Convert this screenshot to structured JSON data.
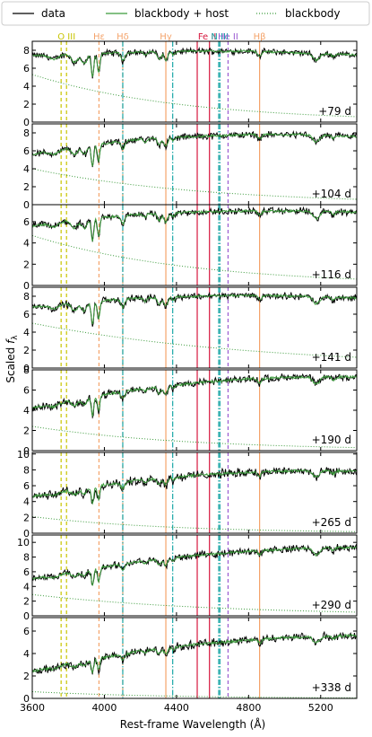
{
  "chart_data": {
    "type": "line",
    "xlabel": "Rest-frame Wavelength (Å)",
    "ylabel": "Scaled f_λ",
    "ylabel_main": "Scaled ",
    "ylabel_symbol": "f",
    "ylabel_sub": "λ",
    "xlim": [
      3600,
      5400
    ],
    "xticks": [
      3600,
      4000,
      4400,
      4800,
      5200
    ],
    "legend": {
      "position": "top, outside",
      "entries": [
        {
          "label": "data",
          "color": "#000000",
          "style": "solid"
        },
        {
          "label": "blackbody + host",
          "color": "#3a9a3a",
          "style": "solid"
        },
        {
          "label": "blackbody",
          "color": "#3a9a3a",
          "style": "dotted"
        }
      ]
    },
    "line_labels": [
      {
        "text": "O III",
        "x": 3790,
        "color": "#c7c400"
      },
      {
        "text": "Hε",
        "x": 3970,
        "color": "#f4a36a"
      },
      {
        "text": "Hδ",
        "x": 4102,
        "color": "#f4a36a"
      },
      {
        "text": "Hγ",
        "x": 4341,
        "color": "#f4a36a"
      },
      {
        "text": "Fe II",
        "x": 4570,
        "color": "#d6173e"
      },
      {
        "text": "N III",
        "x": 4640,
        "color": "#1aa6a6"
      },
      {
        "text": "He II",
        "x": 4686,
        "color": "#9b5bd1"
      },
      {
        "text": "Hβ",
        "x": 4861,
        "color": "#f4a36a"
      }
    ],
    "vlines": [
      {
        "x": 3760,
        "color": "#c7c400",
        "style": "dashed"
      },
      {
        "x": 3790,
        "color": "#c7c400",
        "style": "dashed"
      },
      {
        "x": 3970,
        "color": "#f4a36a",
        "style": "dashed"
      },
      {
        "x": 4102,
        "color": "#f4a36a",
        "style": "dashed"
      },
      {
        "x": 4102,
        "color": "#1aa6a6",
        "style": "dashdot"
      },
      {
        "x": 4341,
        "color": "#f4a36a",
        "style": "solid"
      },
      {
        "x": 4379,
        "color": "#1aa6a6",
        "style": "dashdot"
      },
      {
        "x": 4515,
        "color": "#d6173e",
        "style": "solid"
      },
      {
        "x": 4583,
        "color": "#d6173e",
        "style": "solid"
      },
      {
        "x": 4634,
        "color": "#1aa6a6",
        "style": "dashdot"
      },
      {
        "x": 4641,
        "color": "#1aa6a6",
        "style": "dashdot"
      },
      {
        "x": 4686,
        "color": "#9b5bd1",
        "style": "dashed"
      },
      {
        "x": 4861,
        "color": "#f4a36a",
        "style": "solid"
      }
    ],
    "panels": [
      {
        "label": "+79 d",
        "ylim": [
          0,
          9
        ],
        "yticks": [
          0,
          2,
          4,
          6,
          8
        ],
        "cont": [
          7.4,
          7.6,
          7.8,
          7.9,
          7.9,
          7.7,
          7.5
        ],
        "noise": 0.28,
        "bb": [
          5.3,
          0.6
        ]
      },
      {
        "label": "+104 d",
        "ylim": [
          0,
          9
        ],
        "yticks": [
          0,
          2,
          4,
          6,
          8
        ],
        "cont": [
          5.6,
          6.6,
          7.3,
          7.6,
          7.8,
          7.8,
          7.6
        ],
        "noise": 0.3,
        "bb": [
          4.0,
          0.6
        ]
      },
      {
        "label": "+116 d",
        "ylim": [
          0,
          7.6
        ],
        "yticks": [
          0,
          2,
          4,
          6
        ],
        "cont": [
          5.6,
          6.3,
          6.7,
          6.9,
          7.0,
          7.0,
          6.9
        ],
        "noise": 0.27,
        "bb": [
          4.7,
          0.6
        ]
      },
      {
        "label": "+141 d",
        "ylim": [
          0,
          9
        ],
        "yticks": [
          0,
          2,
          4,
          6,
          8
        ],
        "cont": [
          6.8,
          7.4,
          7.8,
          8.0,
          8.1,
          8.0,
          7.8
        ],
        "noise": 0.3,
        "bb": [
          5.0,
          1.2
        ]
      },
      {
        "label": "+190 d",
        "ylim": [
          0,
          8
        ],
        "yticks": [
          0,
          2,
          4,
          6,
          8
        ],
        "cont": [
          4.2,
          5.3,
          6.1,
          6.7,
          7.1,
          7.3,
          7.3
        ],
        "noise": 0.3,
        "bb": [
          2.4,
          0.3
        ]
      },
      {
        "label": "+265 d",
        "ylim": [
          0,
          10.2
        ],
        "yticks": [
          0,
          2,
          4,
          6,
          8,
          10
        ],
        "cont": [
          4.6,
          5.8,
          6.7,
          7.3,
          7.7,
          7.9,
          7.8
        ],
        "noise": 0.45,
        "bb": [
          2.1,
          0.2
        ]
      },
      {
        "label": "+290 d",
        "ylim": [
          0,
          11
        ],
        "yticks": [
          0,
          2,
          4,
          6,
          8,
          10
        ],
        "cont": [
          5.0,
          6.3,
          7.4,
          8.2,
          8.8,
          9.2,
          9.3
        ],
        "noise": 0.38,
        "bb": [
          2.9,
          0.5
        ]
      },
      {
        "label": "+338 d",
        "ylim": [
          0,
          7.2
        ],
        "yticks": [
          0,
          2,
          4,
          6
        ],
        "cont": [
          2.4,
          3.4,
          4.2,
          4.8,
          5.2,
          5.5,
          5.6
        ],
        "noise": 0.3,
        "bb": [
          0.6,
          0.05
        ]
      }
    ],
    "absorptions": [
      {
        "x": 3720,
        "depth": 0.06,
        "width": 25
      },
      {
        "x": 3835,
        "depth": 0.12,
        "width": 18
      },
      {
        "x": 3889,
        "depth": 0.14,
        "width": 15
      },
      {
        "x": 3934,
        "depth": 0.35,
        "width": 7
      },
      {
        "x": 3968,
        "depth": 0.28,
        "width": 7
      },
      {
        "x": 4102,
        "depth": 0.12,
        "width": 10
      },
      {
        "x": 4226,
        "depth": 0.05,
        "width": 8
      },
      {
        "x": 4305,
        "depth": 0.1,
        "width": 10
      },
      {
        "x": 4341,
        "depth": 0.12,
        "width": 10
      },
      {
        "x": 4383,
        "depth": 0.05,
        "width": 8
      },
      {
        "x": 4861,
        "depth": 0.06,
        "width": 10
      },
      {
        "x": 5175,
        "depth": 0.1,
        "width": 18
      },
      {
        "x": 5270,
        "depth": 0.04,
        "width": 10
      }
    ]
  }
}
